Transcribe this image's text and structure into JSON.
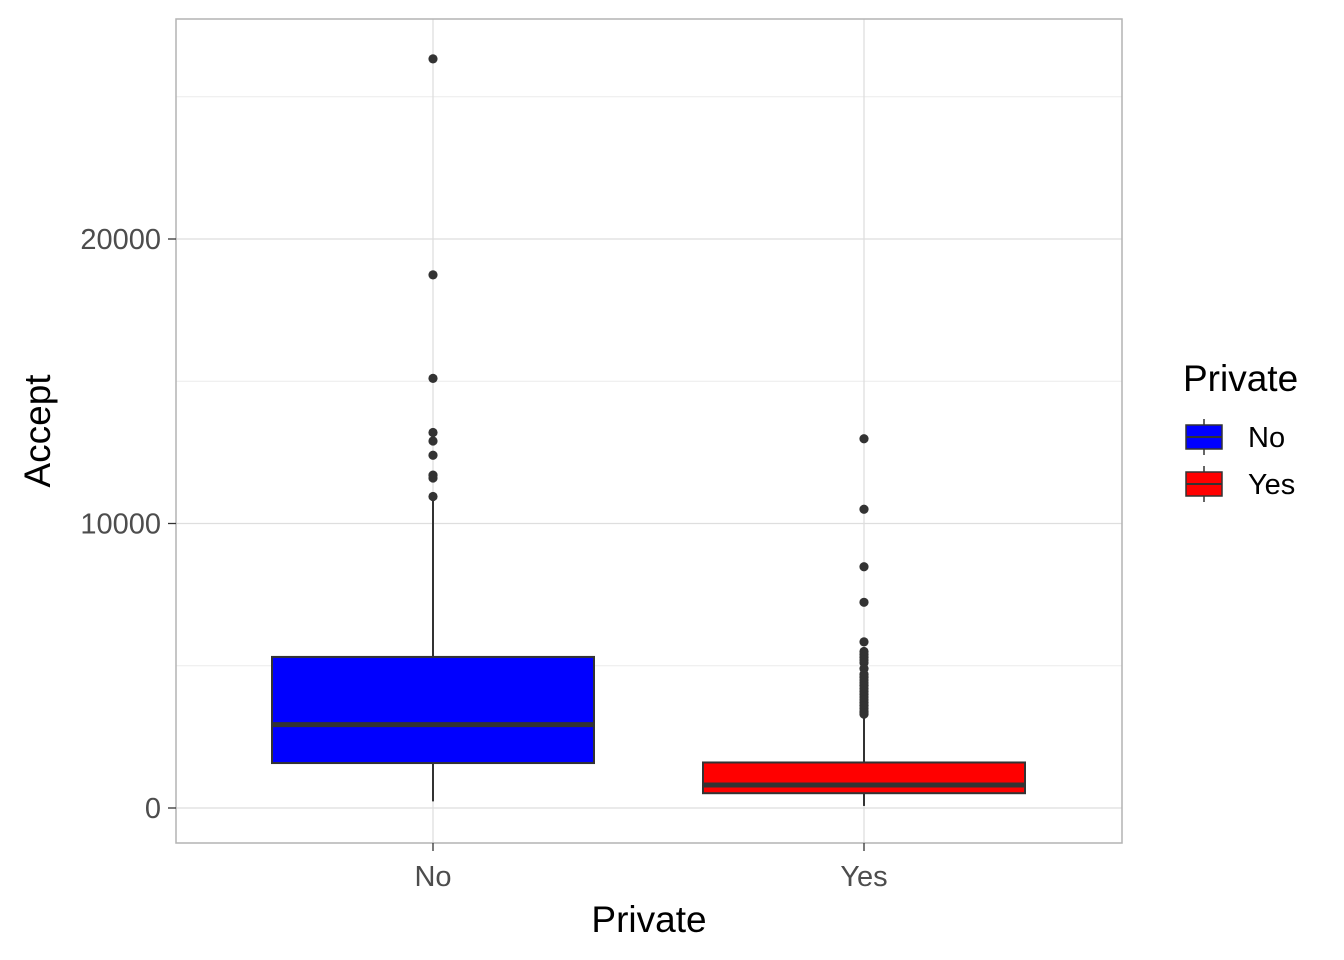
{
  "chart_data": {
    "type": "boxplot",
    "title": "",
    "xlabel": "Private",
    "ylabel": "Accept",
    "ylim": [
      -1200,
      27700
    ],
    "yticks": [
      0,
      10000,
      20000
    ],
    "ytick_labels": [
      "0",
      "10000",
      "20000"
    ],
    "categories": [
      "No",
      "Yes"
    ],
    "grid": true,
    "legend": {
      "title": "Private",
      "position": "right",
      "entries": [
        "No",
        "Yes"
      ]
    },
    "colors": {
      "No": "#0000ff",
      "Yes": "#ff0000",
      "outline": "#333333"
    },
    "series": [
      {
        "category": "No",
        "min": 233,
        "q1": 1580,
        "median": 2930,
        "q3": 5310,
        "max": 10930,
        "outliers": [
          26330,
          18740,
          15100,
          13200,
          12900,
          12400,
          11700,
          11600,
          10950
        ]
      },
      {
        "category": "Yes",
        "min": 72,
        "q1": 520,
        "median": 810,
        "q3": 1600,
        "max": 3230,
        "outliers": [
          12980,
          10500,
          8480,
          7230,
          5840,
          5500,
          5400,
          5300,
          5200,
          5100,
          4900,
          4700,
          4600,
          4500,
          4400,
          4300,
          4200,
          4100,
          4000,
          3900,
          3800,
          3700,
          3600,
          3500,
          3400,
          3350,
          3300
        ]
      }
    ]
  }
}
